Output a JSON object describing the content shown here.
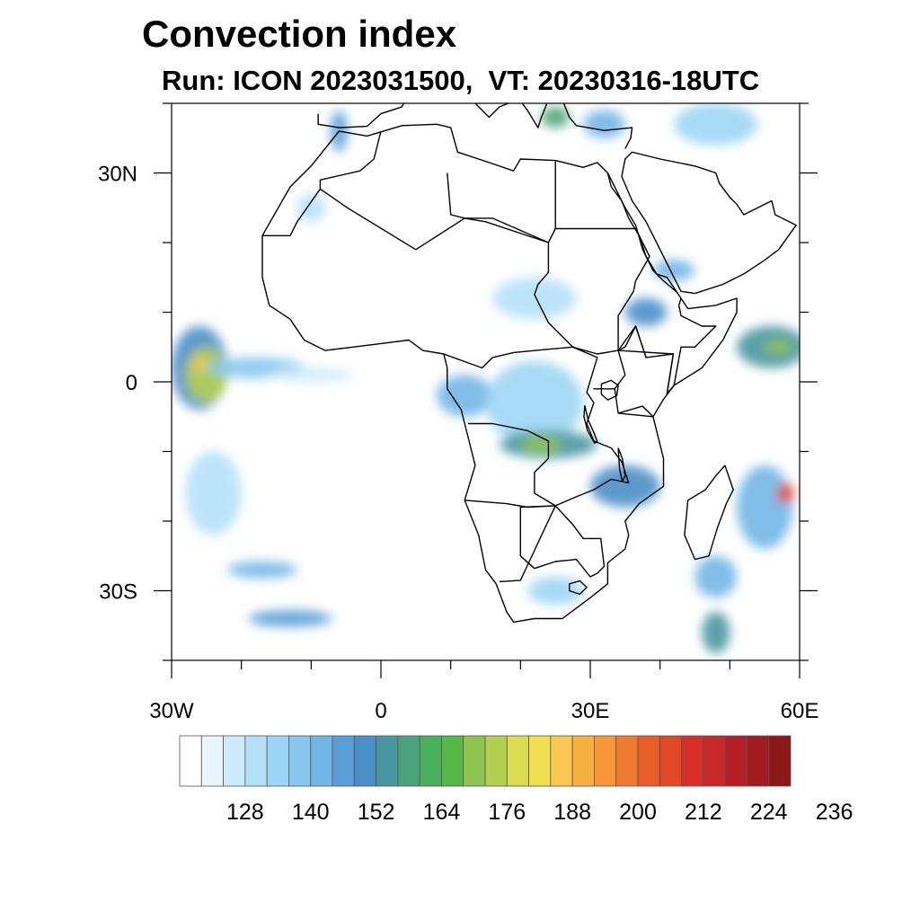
{
  "title": "Convection index",
  "subtitle": "Run: ICON 2023031500,  VT: 20230316-18UTC",
  "map": {
    "lon_range": [
      -30,
      60
    ],
    "lat_range": [
      -40,
      40
    ],
    "x_ticks": [
      {
        "value": -30,
        "label": "30W"
      },
      {
        "value": 0,
        "label": "0"
      },
      {
        "value": 30,
        "label": "30E"
      },
      {
        "value": 60,
        "label": "60E"
      }
    ],
    "y_ticks": [
      {
        "value": 30,
        "label": "30N"
      },
      {
        "value": 0,
        "label": "0"
      },
      {
        "value": -30,
        "label": "30S"
      }
    ]
  },
  "colorbar": {
    "colors": [
      "#ffffff",
      "#e9f6fd",
      "#cdebfa",
      "#b5e1f8",
      "#9dd6f5",
      "#88c8ef",
      "#72b6e6",
      "#5a9ed6",
      "#4a8fc8",
      "#4896a0",
      "#4aa37c",
      "#48b05c",
      "#56b848",
      "#8ec450",
      "#b5d050",
      "#dcdc50",
      "#f0e050",
      "#f8c850",
      "#f8b040",
      "#f89838",
      "#f07a30",
      "#e85e28",
      "#e04828",
      "#d83028",
      "#c82828",
      "#b41e24",
      "#a01c20",
      "#8c1818"
    ],
    "labels": [
      "128",
      "140",
      "152",
      "164",
      "176",
      "188",
      "200",
      "212",
      "224",
      "236"
    ]
  },
  "convection_areas": [
    {
      "lon": -26,
      "lat": 2,
      "rx": 4,
      "ry": 6,
      "level": 8
    },
    {
      "lon": -25,
      "lat": 1,
      "rx": 3,
      "ry": 4,
      "level": 14
    },
    {
      "lon": -26,
      "lat": 2.5,
      "rx": 1,
      "ry": 1,
      "level": 17
    },
    {
      "lon": -18,
      "lat": 2,
      "rx": 7,
      "ry": 1.5,
      "level": 5
    },
    {
      "lon": -10,
      "lat": 1,
      "rx": 6,
      "ry": 1,
      "level": 2
    },
    {
      "lon": 12,
      "lat": -2,
      "rx": 4,
      "ry": 3,
      "level": 6
    },
    {
      "lon": 22,
      "lat": -3,
      "rx": 7,
      "ry": 6,
      "level": 4
    },
    {
      "lon": 24,
      "lat": -9,
      "rx": 7,
      "ry": 2,
      "level": 9
    },
    {
      "lon": 23,
      "lat": -9,
      "rx": 3,
      "ry": 1.2,
      "level": 13
    },
    {
      "lon": 35,
      "lat": -15,
      "rx": 5,
      "ry": 3,
      "level": 8
    },
    {
      "lon": 38,
      "lat": 10,
      "rx": 3,
      "ry": 2,
      "level": 8
    },
    {
      "lon": 42,
      "lat": 16,
      "rx": 3,
      "ry": 1.5,
      "level": 6
    },
    {
      "lon": 56,
      "lat": 5,
      "rx": 5,
      "ry": 3,
      "level": 9
    },
    {
      "lon": 57,
      "lat": 5,
      "rx": 2,
      "ry": 1,
      "level": 13
    },
    {
      "lon": 55,
      "lat": -18,
      "rx": 4,
      "ry": 6,
      "level": 6
    },
    {
      "lon": 58,
      "lat": -16,
      "rx": 1.2,
      "ry": 1.5,
      "level": 22
    },
    {
      "lon": 48,
      "lat": -28,
      "rx": 3,
      "ry": 3,
      "level": 6
    },
    {
      "lon": 48,
      "lat": -36,
      "rx": 2,
      "ry": 3,
      "level": 9
    },
    {
      "lon": -17,
      "lat": -27,
      "rx": 5,
      "ry": 1.2,
      "level": 6
    },
    {
      "lon": -13,
      "lat": -34,
      "rx": 6,
      "ry": 1.2,
      "level": 7
    },
    {
      "lon": -24,
      "lat": -16,
      "rx": 4,
      "ry": 6,
      "level": 3
    },
    {
      "lon": 25,
      "lat": -30,
      "rx": 4,
      "ry": 2,
      "level": 4
    },
    {
      "lon": 22,
      "lat": 12,
      "rx": 6,
      "ry": 3,
      "level": 3
    },
    {
      "lon": -10,
      "lat": 25,
      "rx": 2,
      "ry": 2,
      "level": 3
    },
    {
      "lon": -6,
      "lat": 36,
      "rx": 1.2,
      "ry": 3,
      "level": 7
    },
    {
      "lon": 32,
      "lat": 37,
      "rx": 3,
      "ry": 2,
      "level": 6
    },
    {
      "lon": 48,
      "lat": 37,
      "rx": 6,
      "ry": 3,
      "level": 4
    },
    {
      "lon": 25,
      "lat": 38,
      "rx": 2,
      "ry": 1.5,
      "level": 10
    }
  ],
  "borders": [
    {
      "name": "africa-coastline",
      "pts": [
        [
          -6,
          36
        ],
        [
          -10,
          31
        ],
        [
          -13,
          28
        ],
        [
          -17,
          21
        ],
        [
          -17,
          15
        ],
        [
          -16,
          11
        ],
        [
          -13,
          9
        ],
        [
          -11,
          6
        ],
        [
          -8,
          4.5
        ],
        [
          -4,
          5
        ],
        [
          0,
          5.5
        ],
        [
          4,
          6
        ],
        [
          6,
          4.5
        ],
        [
          9,
          4
        ],
        [
          9.5,
          2
        ],
        [
          9.5,
          -1
        ],
        [
          11.5,
          -4
        ],
        [
          12.5,
          -8
        ],
        [
          13.5,
          -12
        ],
        [
          12,
          -17
        ],
        [
          14,
          -22
        ],
        [
          15,
          -27
        ],
        [
          16.5,
          -29
        ],
        [
          18,
          -33
        ],
        [
          19,
          -34.5
        ],
        [
          22,
          -34
        ],
        [
          26,
          -34
        ],
        [
          30,
          -31
        ],
        [
          32.5,
          -29
        ],
        [
          32.5,
          -26
        ],
        [
          35,
          -24
        ],
        [
          35.5,
          -22
        ],
        [
          35,
          -20
        ],
        [
          37,
          -17.5
        ],
        [
          40.5,
          -15
        ],
        [
          40.5,
          -11
        ],
        [
          39.5,
          -7
        ],
        [
          39,
          -5
        ],
        [
          40.5,
          -2.5
        ],
        [
          42,
          -0.5
        ],
        [
          46,
          2
        ],
        [
          49,
          6
        ],
        [
          51,
          10
        ],
        [
          51,
          12
        ],
        [
          48,
          11
        ],
        [
          44,
          10.5
        ],
        [
          43,
          12
        ],
        [
          41,
          15
        ],
        [
          39.5,
          15.5
        ],
        [
          38,
          18
        ],
        [
          37,
          21
        ],
        [
          35.5,
          23.5
        ],
        [
          34.5,
          26
        ],
        [
          33,
          28
        ],
        [
          32.5,
          30
        ],
        [
          31,
          31.5
        ],
        [
          29,
          30.8
        ],
        [
          25,
          31.8
        ],
        [
          20,
          32
        ],
        [
          19,
          30.3
        ],
        [
          15.5,
          31.5
        ],
        [
          11,
          33
        ],
        [
          10,
          36.5
        ],
        [
          8,
          37
        ],
        [
          3,
          36.8
        ],
        [
          -2,
          35.3
        ],
        [
          -6,
          36
        ]
      ]
    },
    {
      "name": "madagascar",
      "pts": [
        [
          49.3,
          -12
        ],
        [
          50.5,
          -15.5
        ],
        [
          49.5,
          -17.5
        ],
        [
          48.2,
          -21
        ],
        [
          47,
          -25
        ],
        [
          45,
          -25.5
        ],
        [
          43.5,
          -22
        ],
        [
          44,
          -17
        ],
        [
          46.5,
          -15.5
        ],
        [
          48,
          -13.5
        ],
        [
          49.3,
          -12
        ]
      ]
    },
    {
      "name": "arabia",
      "pts": [
        [
          34.5,
          29.5
        ],
        [
          36,
          26
        ],
        [
          38,
          23
        ],
        [
          39.5,
          20
        ],
        [
          41,
          17
        ],
        [
          43,
          13
        ],
        [
          45,
          12.7
        ],
        [
          49,
          14
        ],
        [
          52,
          15.5
        ],
        [
          55,
          17.5
        ],
        [
          57,
          19
        ],
        [
          59.5,
          22.5
        ],
        [
          56.5,
          24
        ],
        [
          56,
          26
        ],
        [
          52,
          24
        ],
        [
          51,
          25.5
        ],
        [
          50,
          26.5
        ],
        [
          48.5,
          28.5
        ],
        [
          48,
          30
        ],
        [
          45,
          31
        ],
        [
          40,
          32
        ],
        [
          36,
          33
        ],
        [
          35,
          32
        ],
        [
          34.5,
          29.5
        ]
      ]
    },
    {
      "name": "europe-coast",
      "pts": [
        [
          -9,
          38.5
        ],
        [
          -9,
          37
        ],
        [
          -6,
          36.5
        ],
        [
          -2,
          36.7
        ],
        [
          0,
          38.5
        ],
        [
          3,
          39.5
        ],
        [
          5,
          43.3
        ],
        [
          9,
          44
        ],
        [
          12,
          41.5
        ],
        [
          15.5,
          38
        ],
        [
          17,
          39.5
        ],
        [
          18.5,
          40.1
        ],
        [
          16,
          41.5
        ],
        [
          13.5,
          43.5
        ],
        [
          14,
          45
        ],
        [
          19,
          42
        ],
        [
          19.5,
          41
        ],
        [
          21,
          39
        ],
        [
          22.5,
          36.5
        ],
        [
          23,
          38
        ],
        [
          24,
          40.5
        ],
        [
          26,
          40.5
        ],
        [
          27,
          38
        ],
        [
          28,
          36.8
        ],
        [
          32,
          36.1
        ],
        [
          36,
          36.5
        ],
        [
          35.8,
          35
        ],
        [
          35,
          33.5
        ]
      ]
    },
    {
      "name": "west-africa-borders",
      "pts": [
        [
          -17,
          21
        ],
        [
          -13,
          21
        ],
        [
          -12,
          23
        ],
        [
          -8.7,
          27.7
        ],
        [
          -4.8,
          25
        ],
        [
          5,
          19
        ],
        [
          12,
          23.5
        ],
        [
          16,
          23.5
        ],
        [
          24,
          20
        ],
        [
          24,
          19.5
        ],
        [
          24,
          15.7
        ],
        [
          22.5,
          14
        ],
        [
          22,
          12.5
        ],
        [
          24,
          8.5
        ],
        [
          27.5,
          5
        ],
        [
          31,
          4
        ],
        [
          34,
          4.5
        ],
        [
          35,
          5
        ],
        [
          36.5,
          8
        ],
        [
          38,
          3.5
        ],
        [
          41.9,
          4
        ],
        [
          41,
          -1.7
        ]
      ]
    },
    {
      "name": "sahara-borders",
      "pts": [
        [
          -8.7,
          27.7
        ],
        [
          -8.7,
          29
        ],
        [
          -3,
          30.3
        ],
        [
          -1,
          32
        ],
        [
          0,
          36
        ]
      ]
    },
    {
      "name": "libya-egypt",
      "pts": [
        [
          9.5,
          30
        ],
        [
          10,
          24
        ],
        [
          12,
          23.5
        ],
        [
          15,
          23
        ],
        [
          24,
          20
        ],
        [
          25,
          22
        ],
        [
          36.5,
          22
        ],
        [
          25,
          22
        ],
        [
          25,
          31.7
        ]
      ]
    },
    {
      "name": "central-africa",
      "pts": [
        [
          9,
          4
        ],
        [
          14.5,
          2
        ],
        [
          16,
          3.5
        ],
        [
          19,
          4.2
        ],
        [
          23,
          4.6
        ],
        [
          27.5,
          5
        ],
        [
          31,
          3.5
        ],
        [
          29.5,
          -1.5
        ],
        [
          30.5,
          -3
        ],
        [
          29.5,
          -6
        ],
        [
          30.5,
          -8.5
        ],
        [
          33,
          -9.5
        ],
        [
          34.5,
          -11.5
        ],
        [
          35.5,
          -14.5
        ],
        [
          33,
          -14
        ],
        [
          30.5,
          -15.5
        ],
        [
          28,
          -16.5
        ],
        [
          25,
          -17.8
        ],
        [
          22,
          -16
        ],
        [
          22,
          -13
        ],
        [
          24,
          -11
        ],
        [
          24,
          -8.5
        ],
        [
          21,
          -7
        ],
        [
          16,
          -6
        ],
        [
          12.5,
          -6
        ]
      ]
    },
    {
      "name": "southern-africa",
      "pts": [
        [
          12,
          -17
        ],
        [
          18,
          -17.5
        ],
        [
          21,
          -18
        ],
        [
          25,
          -17.8
        ],
        [
          27.5,
          -20.5
        ],
        [
          29,
          -22.5
        ],
        [
          31.5,
          -22.5
        ],
        [
          32,
          -26.5
        ],
        [
          31,
          -27.5
        ],
        [
          30,
          -28
        ],
        [
          28,
          -25.5
        ],
        [
          25,
          -25.8
        ],
        [
          22,
          -26.8
        ],
        [
          20,
          -25
        ],
        [
          20,
          -22
        ],
        [
          20,
          -18
        ],
        [
          25,
          -17.8
        ],
        [
          20,
          -28.5
        ],
        [
          17,
          -28.7
        ]
      ]
    },
    {
      "name": "east-africa",
      "pts": [
        [
          33.5,
          -1
        ],
        [
          34,
          -4.5
        ],
        [
          37.5,
          -3.5
        ],
        [
          39,
          -5
        ],
        [
          34,
          -4.5
        ],
        [
          33.5,
          -1
        ],
        [
          31.5,
          -1
        ],
        [
          30.5,
          -1
        ],
        [
          33.5,
          -1
        ],
        [
          35,
          1
        ],
        [
          34,
          4.5
        ],
        [
          41.9,
          4
        ],
        [
          41,
          -1.7
        ],
        [
          42,
          -0.5
        ],
        [
          43,
          5
        ],
        [
          45,
          5
        ],
        [
          48,
          8
        ],
        [
          46,
          8
        ],
        [
          43,
          9.5
        ],
        [
          42.7,
          11
        ],
        [
          43,
          12
        ]
      ]
    },
    {
      "name": "horn-borders",
      "pts": [
        [
          36.5,
          22
        ],
        [
          38.5,
          18
        ],
        [
          36.5,
          14.5
        ],
        [
          36.2,
          13
        ],
        [
          34,
          9.5
        ],
        [
          34,
          5
        ],
        [
          34,
          4.5
        ],
        [
          36.5,
          8
        ],
        [
          38,
          3.5
        ]
      ]
    },
    {
      "name": "lesotho",
      "pts": [
        [
          27,
          -29
        ],
        [
          28.5,
          -28.6
        ],
        [
          29.5,
          -29.5
        ],
        [
          28.5,
          -30.5
        ],
        [
          27,
          -30
        ],
        [
          27,
          -29
        ]
      ]
    },
    {
      "name": "lake-victoria",
      "pts": [
        [
          31.6,
          -0.3
        ],
        [
          33,
          0.2
        ],
        [
          34,
          -0.5
        ],
        [
          33.8,
          -2
        ],
        [
          32.5,
          -2.6
        ],
        [
          31.6,
          -1.8
        ],
        [
          31.6,
          -0.3
        ]
      ]
    },
    {
      "name": "lake-tanganyika",
      "pts": [
        [
          29.2,
          -3.4
        ],
        [
          29.7,
          -5.5
        ],
        [
          30.6,
          -7.5
        ],
        [
          31,
          -8.6
        ],
        [
          30.6,
          -8.8
        ],
        [
          29.6,
          -7
        ],
        [
          29.1,
          -5
        ],
        [
          29.2,
          -3.4
        ]
      ]
    },
    {
      "name": "lake-malawi",
      "pts": [
        [
          34,
          -9.5
        ],
        [
          34.6,
          -11
        ],
        [
          35,
          -13.5
        ],
        [
          34.6,
          -14.3
        ],
        [
          34.2,
          -12.5
        ],
        [
          34,
          -9.5
        ]
      ]
    },
    {
      "name": "red-sea-coast",
      "pts": [
        [
          32.5,
          30
        ],
        [
          33.5,
          28
        ],
        [
          35,
          25
        ],
        [
          36.5,
          22.5
        ],
        [
          37.5,
          19
        ],
        [
          39,
          16
        ],
        [
          40.5,
          14.5
        ],
        [
          42.5,
          12.8
        ]
      ]
    }
  ]
}
